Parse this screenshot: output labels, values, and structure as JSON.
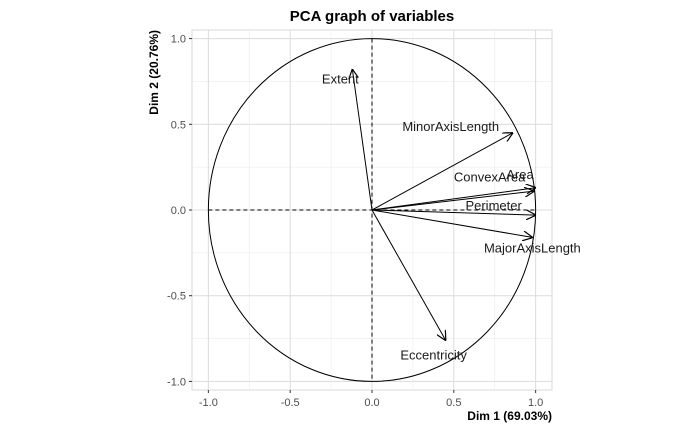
{
  "chart_data": {
    "type": "scatter",
    "title": "PCA graph of variables",
    "xlabel": "Dim 1 (69.03%)",
    "ylabel": "Dim 2 (20.76%)",
    "xlim": [
      -1.1,
      1.1
    ],
    "ylim": [
      -1.05,
      1.05
    ],
    "x_ticks": [
      -1.0,
      -0.5,
      0.0,
      0.5,
      1.0
    ],
    "y_ticks": [
      -1.0,
      -0.5,
      0.0,
      0.5,
      1.0
    ],
    "x_tick_labels": [
      "-1.0",
      "-0.5",
      "0.0",
      "0.5",
      "1.0"
    ],
    "y_tick_labels": [
      "-1.0",
      "-0.5",
      "0.0",
      "0.5",
      "1.0"
    ],
    "grid": true,
    "unit_circle": true,
    "variables": [
      {
        "name": "Area",
        "x": 0.99,
        "y": 0.11
      },
      {
        "name": "MajorAxisLength",
        "x": 0.98,
        "y": -0.16
      },
      {
        "name": "MinorAxisLength",
        "x": 0.86,
        "y": 0.45
      },
      {
        "name": "Eccentricity",
        "x": 0.45,
        "y": -0.76
      },
      {
        "name": "ConvexArea",
        "x": 1.0,
        "y": 0.13
      },
      {
        "name": "Extent",
        "x": -0.12,
        "y": 0.82
      },
      {
        "name": "Perimeter",
        "x": 1.0,
        "y": -0.03
      }
    ]
  }
}
